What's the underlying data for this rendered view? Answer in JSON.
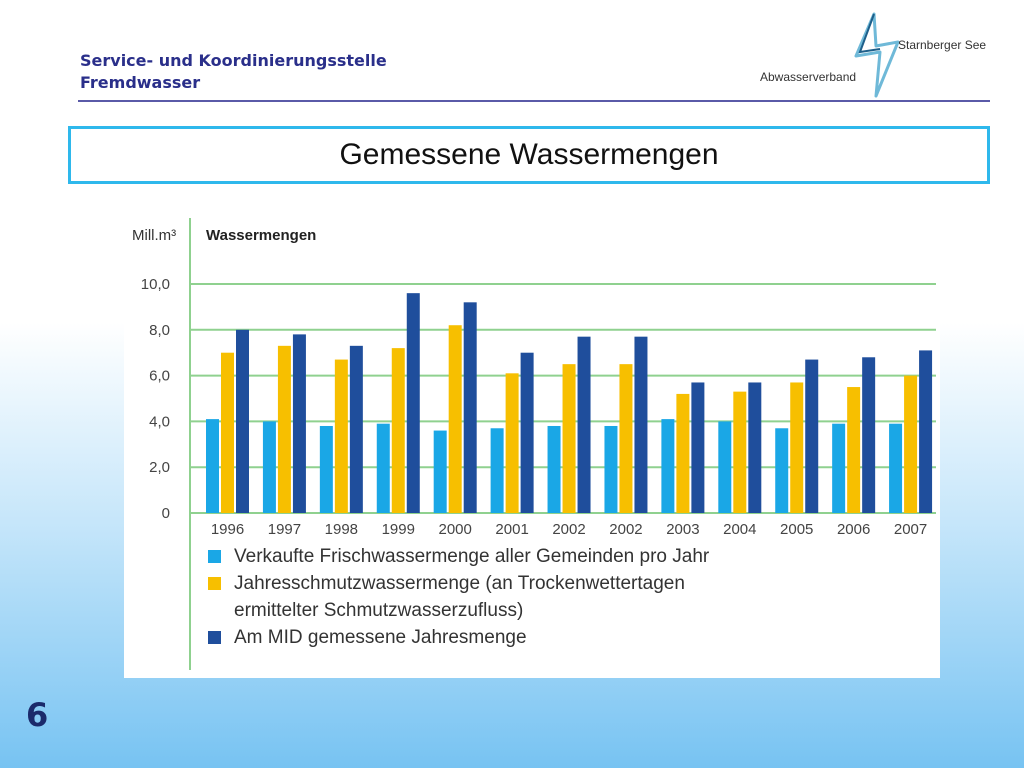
{
  "header": {
    "org_line1": "Service- und Koordinierungsstelle",
    "org_line2": "Fremdwasser"
  },
  "logo": {
    "name": "Abwasserverband",
    "place": "Starnberger See",
    "icon": "lightning-bolt-icon"
  },
  "slide": {
    "title": "Gemessene Wassermengen",
    "page_number": "6"
  },
  "colors": {
    "accent_border": "#2eb8ec",
    "header_text": "#2a2f8a",
    "series_1": "#1aa7e6",
    "series_2": "#f7bf00",
    "series_3": "#1f4e9c",
    "grid": "#8fd18f"
  },
  "chart_data": {
    "type": "bar",
    "title": "Wassermengen",
    "unit_label": "Mill.m³",
    "xlabel": "",
    "ylabel": "Mill.m³",
    "ylim": [
      0,
      10
    ],
    "grid": true,
    "legend_position": "bottom",
    "y_ticks": [
      {
        "value": 0,
        "label": "0"
      },
      {
        "value": 2,
        "label": "2,0"
      },
      {
        "value": 4,
        "label": "4,0"
      },
      {
        "value": 6,
        "label": "6,0"
      },
      {
        "value": 8,
        "label": "8,0"
      },
      {
        "value": 10,
        "label": "10,0"
      }
    ],
    "categories": [
      "1996",
      "1997",
      "1998",
      "1999",
      "2000",
      "2001",
      "2002",
      "2002",
      "2003",
      "2004",
      "2005",
      "2006",
      "2007"
    ],
    "series": [
      {
        "name": "Verkaufte Frischwassermenge aller Gemeinden pro Jahr",
        "color": "#1aa7e6",
        "values": [
          4.1,
          4.0,
          3.8,
          3.9,
          3.6,
          3.7,
          3.8,
          3.8,
          4.1,
          4.0,
          3.7,
          3.9,
          3.9
        ]
      },
      {
        "name": "Jahresschmutzwassermenge (an Trockenwettertagen ermittelter Schmutzwasserzufluss)",
        "color": "#f7bf00",
        "values": [
          7.0,
          7.3,
          6.7,
          7.2,
          8.2,
          6.1,
          6.5,
          6.5,
          5.2,
          5.3,
          5.7,
          5.5,
          6.0
        ]
      },
      {
        "name": "Am MID gemessene Jahresmenge",
        "color": "#1f4e9c",
        "values": [
          8.0,
          7.8,
          7.3,
          9.6,
          9.2,
          7.0,
          7.7,
          7.7,
          5.7,
          5.7,
          6.7,
          6.8,
          7.1
        ]
      }
    ],
    "legend": [
      {
        "line1": "Verkaufte Frischwassermenge aller Gemeinden pro Jahr",
        "line2": ""
      },
      {
        "line1": "Jahresschmutzwassermenge (an Trockenwettertagen",
        "line2": "ermittelter Schmutzwasserzufluss)"
      },
      {
        "line1": "Am MID gemessene Jahresmenge",
        "line2": ""
      }
    ]
  }
}
